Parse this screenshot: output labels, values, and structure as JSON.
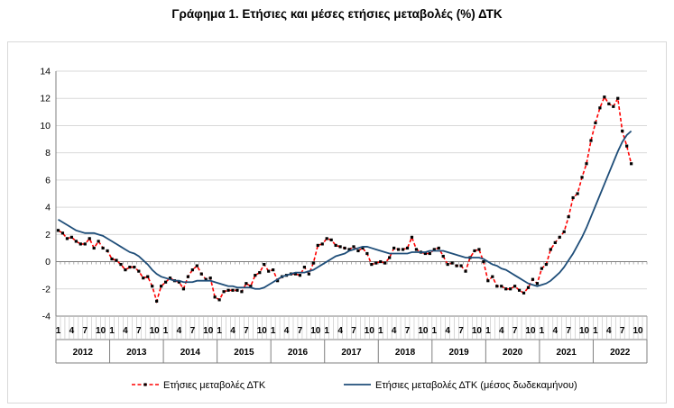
{
  "chart_data": {
    "type": "line",
    "title": "Γράφημα 1. Ετήσιες και μέσες ετήσιες μεταβολές (%) ΔΤΚ",
    "xlabel": "",
    "ylabel": "",
    "ylim": [
      -4,
      14
    ],
    "yticks": [
      -4,
      -2,
      0,
      2,
      4,
      6,
      8,
      10,
      12,
      14
    ],
    "years": [
      "2012",
      "2013",
      "2014",
      "2015",
      "2016",
      "2017",
      "2018",
      "2019",
      "2020",
      "2021",
      "2022"
    ],
    "month_ticks": [
      "1",
      "4",
      "7",
      "10"
    ],
    "legend_position": "bottom",
    "grid": "horizontal",
    "series": [
      {
        "name": "Ετήσιες μεταβολές ΔΤΚ",
        "color": "#ff0000",
        "style": "dashed-markers",
        "values": [
          2.3,
          2.1,
          1.7,
          1.8,
          1.5,
          1.3,
          1.3,
          1.7,
          1.0,
          1.5,
          1.0,
          0.8,
          0.2,
          0.1,
          -0.2,
          -0.6,
          -0.4,
          -0.4,
          -0.7,
          -1.2,
          -1.1,
          -1.8,
          -2.9,
          -1.8,
          -1.5,
          -1.2,
          -1.4,
          -1.5,
          -2.0,
          -1.1,
          -0.6,
          -0.3,
          -0.9,
          -1.3,
          -1.2,
          -2.6,
          -2.8,
          -2.2,
          -2.1,
          -2.1,
          -2.1,
          -2.2,
          -1.6,
          -1.8,
          -1.0,
          -0.8,
          -0.2,
          -0.7,
          -0.6,
          -1.4,
          -1.1,
          -1.0,
          -0.9,
          -0.9,
          -1.0,
          -0.4,
          -0.9,
          -0.1,
          1.2,
          1.3,
          1.7,
          1.6,
          1.2,
          1.1,
          1.0,
          0.9,
          1.1,
          0.8,
          1.0,
          0.6,
          -0.2,
          -0.1,
          0.0,
          -0.1,
          0.3,
          1.0,
          0.9,
          0.9,
          1.0,
          1.8,
          0.9,
          0.7,
          0.6,
          0.6,
          0.9,
          1.0,
          0.4,
          -0.2,
          -0.1,
          -0.3,
          -0.3,
          -0.7,
          0.3,
          0.8,
          0.9,
          0.0,
          -1.4,
          -1.1,
          -1.8,
          -1.8,
          -2.0,
          -2.0,
          -1.8,
          -2.1,
          -2.3,
          -1.9,
          -1.3,
          -1.6,
          -0.5,
          -0.2,
          0.9,
          1.4,
          1.8,
          2.2,
          3.3,
          4.7,
          5.0,
          6.2,
          7.2,
          8.9,
          10.2,
          11.3,
          12.1,
          11.6,
          11.4,
          12.0,
          9.6,
          8.5,
          7.2
        ]
      },
      {
        "name": "Ετήσιες μεταβολές ΔΤΚ (μέσος δωδεκαμήνου)",
        "color": "#1f4e79",
        "style": "solid",
        "values": [
          3.1,
          2.9,
          2.7,
          2.5,
          2.3,
          2.2,
          2.1,
          2.1,
          2.1,
          2.0,
          1.9,
          1.7,
          1.5,
          1.3,
          1.1,
          0.9,
          0.7,
          0.6,
          0.4,
          0.1,
          -0.2,
          -0.6,
          -0.9,
          -1.1,
          -1.2,
          -1.3,
          -1.4,
          -1.4,
          -1.5,
          -1.5,
          -1.5,
          -1.4,
          -1.4,
          -1.4,
          -1.4,
          -1.5,
          -1.6,
          -1.7,
          -1.8,
          -1.8,
          -1.9,
          -1.9,
          -1.9,
          -1.9,
          -2.0,
          -2.0,
          -1.9,
          -1.7,
          -1.5,
          -1.3,
          -1.1,
          -1.0,
          -0.9,
          -0.8,
          -0.8,
          -0.8,
          -0.7,
          -0.6,
          -0.4,
          -0.2,
          0.0,
          0.2,
          0.4,
          0.5,
          0.6,
          0.8,
          0.9,
          1.0,
          1.1,
          1.1,
          1.0,
          0.9,
          0.8,
          0.7,
          0.6,
          0.6,
          0.6,
          0.6,
          0.6,
          0.7,
          0.7,
          0.7,
          0.7,
          0.8,
          0.8,
          0.8,
          0.8,
          0.7,
          0.6,
          0.5,
          0.4,
          0.3,
          0.3,
          0.3,
          0.3,
          0.2,
          0.0,
          -0.2,
          -0.3,
          -0.5,
          -0.6,
          -0.8,
          -1.0,
          -1.2,
          -1.4,
          -1.6,
          -1.7,
          -1.8,
          -1.7,
          -1.6,
          -1.4,
          -1.1,
          -0.8,
          -0.4,
          0.1,
          0.6,
          1.2,
          1.8,
          2.5,
          3.3,
          4.1,
          4.9,
          5.7,
          6.5,
          7.3,
          8.1,
          8.8,
          9.3,
          9.6
        ]
      }
    ]
  }
}
